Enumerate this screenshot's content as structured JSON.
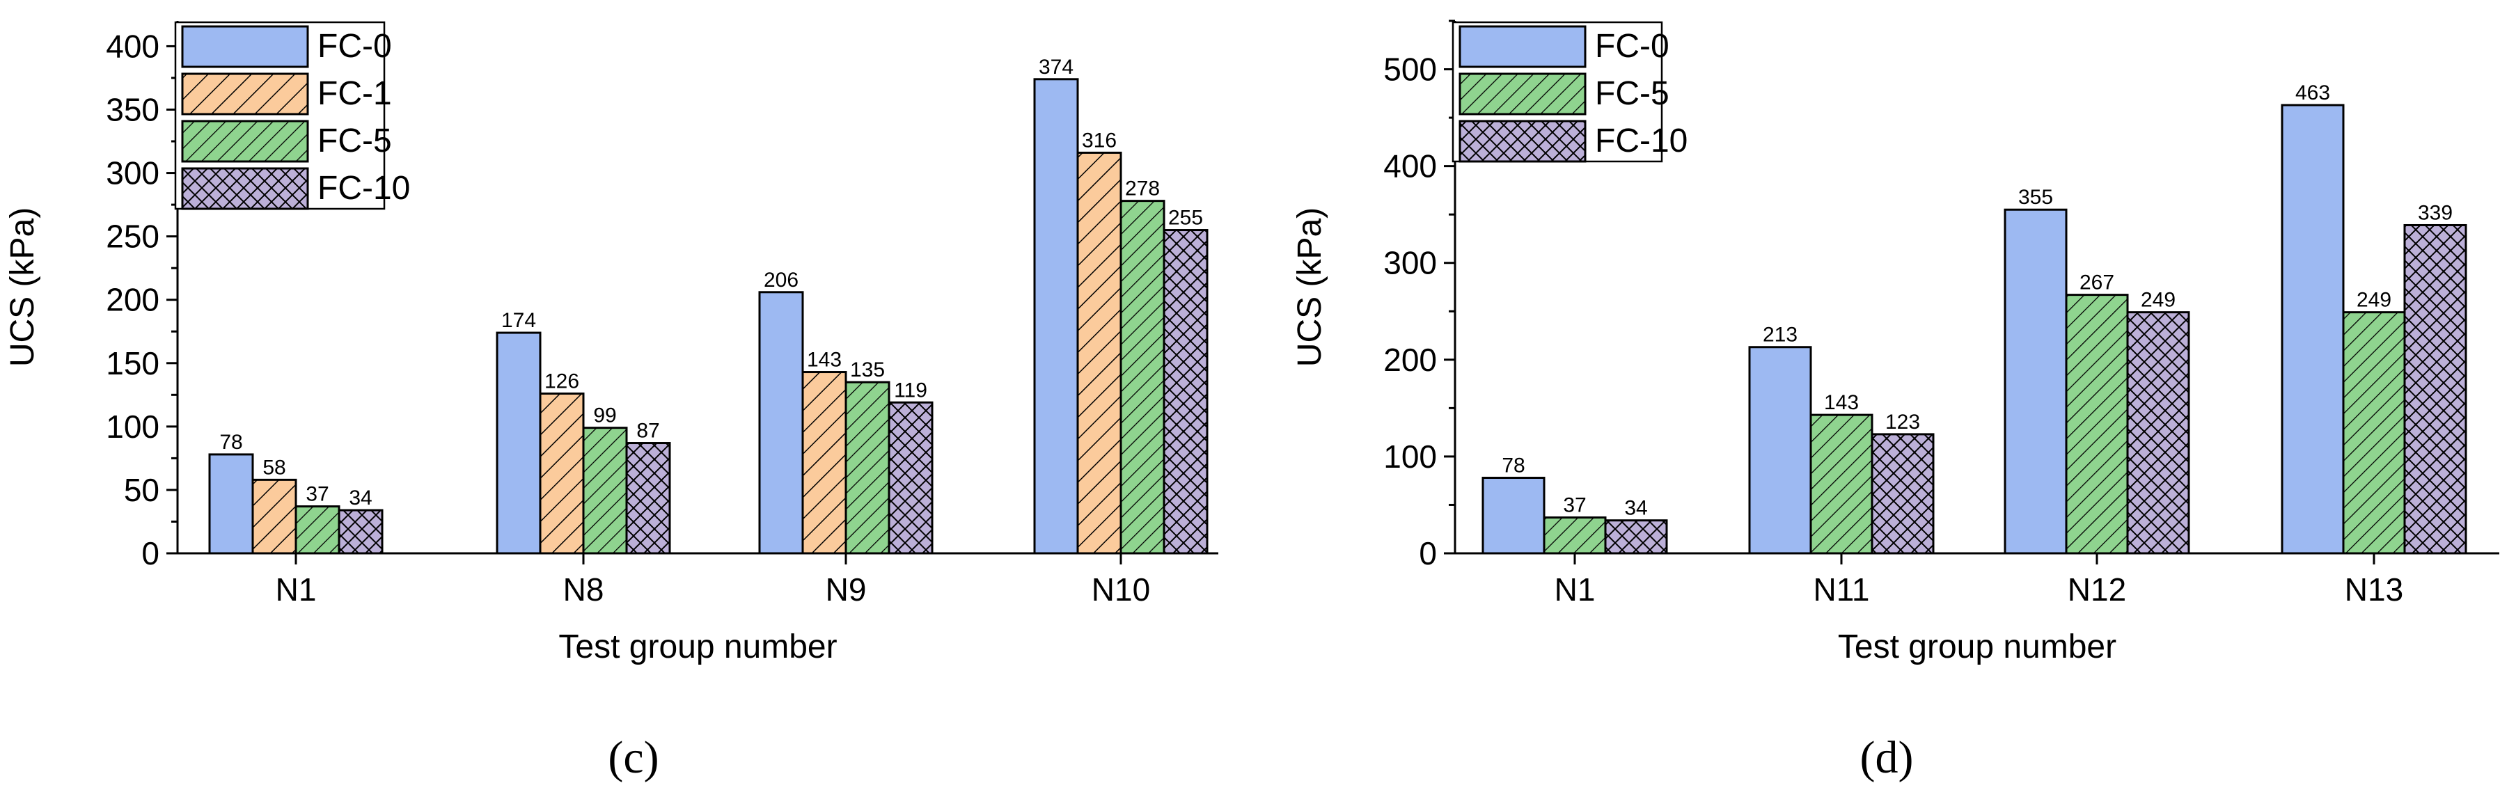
{
  "colors": {
    "FC-0": "#9db9f2",
    "FC-1": "#fbcb9c",
    "FC-5": "#8fd48f",
    "FC-10": "#bcb0d8",
    "outline": "#000000"
  },
  "patterns": {
    "FC-0": "solid",
    "FC-1": "diag-up-right",
    "FC-5": "diag-up-right-dense",
    "FC-10": "crosshatch"
  },
  "chart_data": [
    {
      "id": "c",
      "type": "bar",
      "panel_label": "(c)",
      "xlabel": "Test group number",
      "ylabel": "UCS (kPa)",
      "ylim": [
        0,
        420
      ],
      "yticks": [
        0,
        50,
        100,
        150,
        200,
        250,
        300,
        350,
        400
      ],
      "categories": [
        "N1",
        "N8",
        "N9",
        "N10"
      ],
      "legend_position": "top-left",
      "series": [
        {
          "name": "FC-0",
          "values": [
            78,
            174,
            206,
            374
          ]
        },
        {
          "name": "FC-1",
          "values": [
            58,
            126,
            143,
            316
          ]
        },
        {
          "name": "FC-5",
          "values": [
            37,
            99,
            135,
            278
          ]
        },
        {
          "name": "FC-10",
          "values": [
            34,
            87,
            119,
            255
          ]
        }
      ]
    },
    {
      "id": "d",
      "type": "bar",
      "panel_label": "(d)",
      "xlabel": "Test group number",
      "ylabel": "UCS (kPa)",
      "ylim": [
        0,
        550
      ],
      "yticks": [
        0,
        100,
        200,
        300,
        400,
        500
      ],
      "categories": [
        "N1",
        "N11",
        "N12",
        "N13"
      ],
      "legend_position": "top-left",
      "series": [
        {
          "name": "FC-0",
          "values": [
            78,
            213,
            355,
            463
          ]
        },
        {
          "name": "FC-5",
          "values": [
            37,
            143,
            267,
            249
          ]
        },
        {
          "name": "FC-10",
          "values": [
            34,
            123,
            249,
            339
          ]
        }
      ]
    }
  ]
}
